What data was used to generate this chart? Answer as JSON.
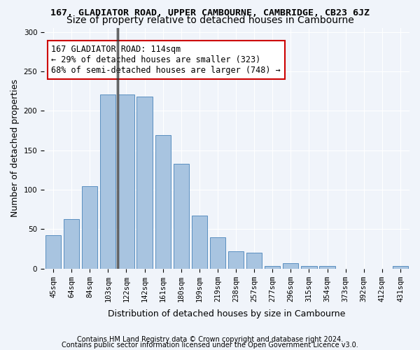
{
  "title": "167, GLADIATOR ROAD, UPPER CAMBOURNE, CAMBRIDGE, CB23 6JZ",
  "subtitle": "Size of property relative to detached houses in Cambourne",
  "xlabel": "Distribution of detached houses by size in Cambourne",
  "ylabel": "Number of detached properties",
  "categories": [
    "45sqm",
    "64sqm",
    "84sqm",
    "103sqm",
    "122sqm",
    "142sqm",
    "161sqm",
    "180sqm",
    "199sqm",
    "219sqm",
    "238sqm",
    "257sqm",
    "277sqm",
    "296sqm",
    "315sqm",
    "354sqm",
    "373sqm",
    "392sqm",
    "412sqm",
    "431sqm"
  ],
  "values": [
    42,
    63,
    104,
    221,
    221,
    218,
    169,
    133,
    67,
    40,
    22,
    20,
    3,
    7,
    3,
    3,
    0,
    0,
    0,
    3
  ],
  "bar_color": "#a8c4e0",
  "bar_edge_color": "#5a8fc0",
  "highlight_bar_index": 3,
  "annotation_text": "167 GLADIATOR ROAD: 114sqm\n← 29% of detached houses are smaller (323)\n68% of semi-detached houses are larger (748) →",
  "annotation_box_color": "#ffffff",
  "annotation_box_edge_color": "#cc0000",
  "ylim": [
    0,
    305
  ],
  "yticks": [
    0,
    50,
    100,
    150,
    200,
    250,
    300
  ],
  "footer1": "Contains HM Land Registry data © Crown copyright and database right 2024.",
  "footer2": "Contains public sector information licensed under the Open Government Licence v3.0.",
  "bg_color": "#f0f4fa",
  "grid_color": "#ffffff",
  "title_fontsize": 9.5,
  "subtitle_fontsize": 10,
  "xlabel_fontsize": 9,
  "ylabel_fontsize": 9,
  "tick_fontsize": 7.5,
  "annotation_fontsize": 8.5,
  "footer_fontsize": 7
}
